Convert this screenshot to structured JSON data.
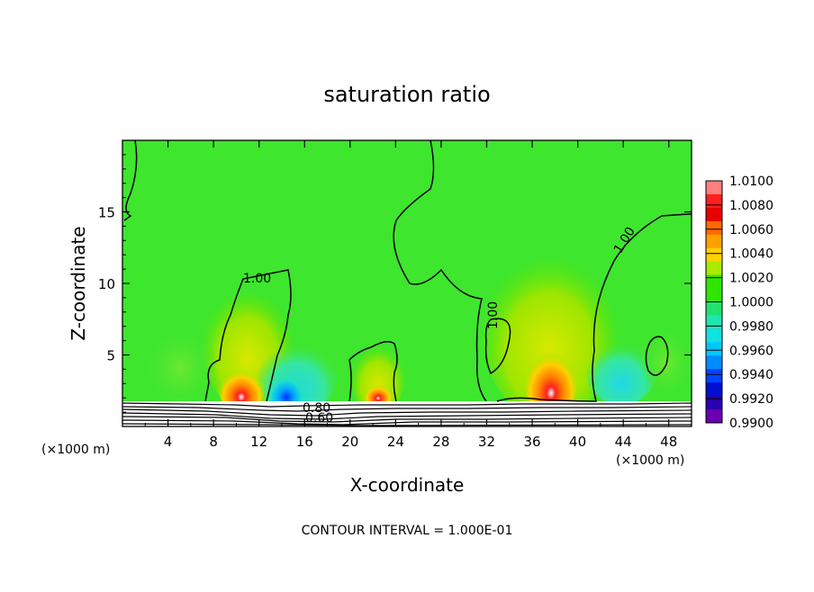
{
  "chart_data": {
    "type": "heatmap",
    "title": "saturation ratio",
    "xlabel": "X-coordinate",
    "ylabel": "Z-coordinate",
    "x_unit": "(×1000 m)",
    "xlim": [
      0,
      50
    ],
    "ylim": [
      0,
      20
    ],
    "x_ticks": [
      4,
      8,
      12,
      16,
      20,
      24,
      28,
      32,
      36,
      40,
      44,
      48
    ],
    "y_ticks": [
      5,
      10,
      15
    ],
    "footer": "CONTOUR INTERVAL = 1.000E-01",
    "contour_labels": [
      "1.00",
      "1.00",
      "1.00",
      "0.80",
      "0.60"
    ],
    "colorbar": {
      "labels": [
        "1.0100",
        "1.0080",
        "1.0060",
        "1.0040",
        "1.0020",
        "1.0000",
        "0.9980",
        "0.9960",
        "0.9940",
        "0.9920",
        "0.9900"
      ],
      "colors": [
        "#ff7f7f",
        "#ff2020",
        "#e60000",
        "#ff6a00",
        "#ff9f00",
        "#ffd200",
        "#aaea00",
        "#2ee600",
        "#2ee600",
        "#22e26e",
        "#1ee6b2",
        "#10e2e2",
        "#00c8ff",
        "#008bff",
        "#0045ff",
        "#0010d0",
        "#2a00b0",
        "#6a00b0"
      ],
      "range": [
        0.99,
        1.01
      ]
    },
    "background_value": 1.0,
    "features": [
      {
        "x": 10.5,
        "z": 2.6,
        "value": 1.009
      },
      {
        "x": 22.5,
        "z": 2.3,
        "value": 1.008
      },
      {
        "x": 37.5,
        "z": 3.0,
        "value": 1.009
      },
      {
        "x": 14.8,
        "z": 2.5,
        "value": 0.994
      },
      {
        "x": 18.0,
        "z": 3.0,
        "value": 0.9965
      }
    ]
  }
}
